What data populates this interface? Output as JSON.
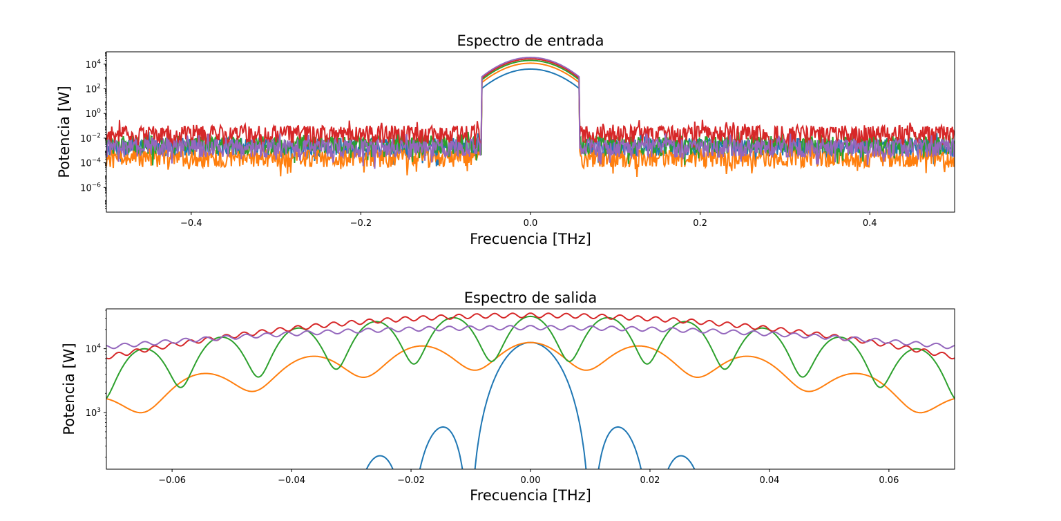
{
  "chart_data": [
    {
      "type": "line",
      "title": "Espectro de entrada",
      "xlabel": "Frecuencia [THz]",
      "ylabel": "Potencia [W]",
      "xlim": [
        -0.5,
        0.5
      ],
      "ylim": [
        1e-08,
        100000.0
      ],
      "yscale": "log",
      "grid": false,
      "xticks": [
        -0.4,
        -0.2,
        0.0,
        0.2,
        0.4
      ],
      "xtick_labels": [
        "−0.4",
        "−0.2",
        "0.0",
        "0.2",
        "0.4"
      ],
      "yticks": [
        1e-06,
        0.0001,
        0.01,
        1,
        100,
        10000
      ],
      "ytick_labels": [
        [
          "10",
          "−6"
        ],
        [
          "10",
          "−4"
        ],
        [
          "10",
          "−2"
        ],
        [
          "10",
          "0"
        ],
        [
          "10",
          "2"
        ],
        [
          "10",
          "4"
        ]
      ],
      "pulse_halfwidth_THz": 0.058,
      "series": [
        {
          "color": "#1f77b4",
          "peak": 4000,
          "floor": 0.0025,
          "band_level": 0.0025
        },
        {
          "color": "#ff7f0e",
          "peak": 12000,
          "floor": 0.0003,
          "band_level": 0.0003
        },
        {
          "color": "#2ca02c",
          "peak": 20000,
          "floor": 0.0035,
          "band_level": 0.0035
        },
        {
          "color": "#d62728",
          "peak": 27000,
          "floor": 0.025,
          "band_level": 0.025
        },
        {
          "color": "#9467bd",
          "peak": 35000,
          "floor": 0.002,
          "band_level": 0.002
        }
      ]
    },
    {
      "type": "line",
      "title": "Espectro de salida",
      "xlabel": "Frecuencia [THz]",
      "ylabel": "Potencia [W]",
      "xlim": [
        -0.071,
        0.071
      ],
      "ylim": [
        130,
        42000
      ],
      "yscale": "log",
      "grid": false,
      "xticks": [
        -0.06,
        -0.04,
        -0.02,
        0.0,
        0.02,
        0.04,
        0.06
      ],
      "xtick_labels": [
        "−0.06",
        "−0.04",
        "−0.02",
        "0.00",
        "0.02",
        "0.04",
        "0.06"
      ],
      "yticks": [
        1000,
        10000
      ],
      "ytick_labels": [
        [
          "10",
          "3"
        ],
        [
          "10",
          "4"
        ]
      ],
      "series": [
        {
          "color": "#1f77b4",
          "peak": 12500,
          "profile": "sinc",
          "lobe_THz": 0.0128
        },
        {
          "color": "#ff7f0e",
          "center": 12500,
          "env_halfwidth_THz": 0.052,
          "ripple_period_THz": 0.0185,
          "ripple_depth": 0.62
        },
        {
          "color": "#2ca02c",
          "center": 32000,
          "env_halfwidth_THz": 0.06,
          "ripple_period_THz": 0.013,
          "ripple_depth": 0.8
        },
        {
          "color": "#d62728",
          "center": 36000,
          "env_halfwidth_THz": 0.058,
          "ripple_period_THz": 0.003,
          "ripple_depth": 0.15
        },
        {
          "color": "#9467bd",
          "center": 23000,
          "env_halfwidth_THz": 0.085,
          "ripple_period_THz": 0.0034,
          "ripple_depth": 0.14
        }
      ]
    }
  ]
}
